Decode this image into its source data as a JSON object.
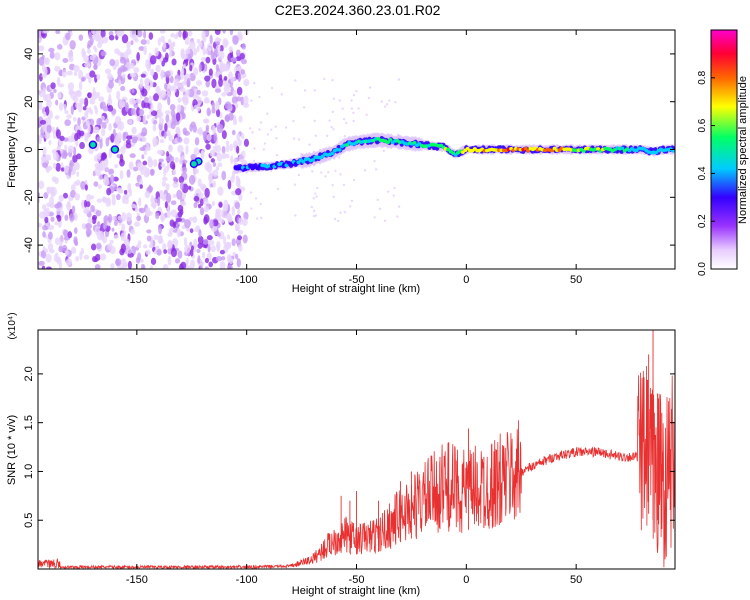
{
  "title": "C2E3.2024.360.23.01.R02",
  "chart_data": [
    {
      "type": "heatmap",
      "xlabel": "Height of straight line (km)",
      "ylabel": "Frequency (Hz)",
      "xlim": [
        -195,
        95
      ],
      "ylim": [
        -50,
        50
      ],
      "xticks": [
        -150,
        -100,
        -50,
        0,
        50
      ],
      "yticks": [
        -40,
        -20,
        0,
        20,
        40
      ],
      "colorbar": {
        "label": "Normalized spectral amplitude",
        "range": [
          0,
          1
        ],
        "ticks": [
          "0.0",
          "0.2",
          "0.4",
          "0.6",
          "0.8"
        ],
        "colormap": [
          "#ffffff",
          "#e8ccff",
          "#9933ff",
          "#3300ff",
          "#00ccff",
          "#00ff66",
          "#ffff00",
          "#ff6600",
          "#ff0033",
          "#ff00cc"
        ]
      },
      "ridge": {
        "x": [
          -105,
          -90,
          -80,
          -70,
          -60,
          -55,
          -50,
          -40,
          -30,
          -20,
          -10,
          -5,
          0,
          10,
          20,
          30,
          40,
          50,
          60,
          70,
          80,
          85,
          90,
          95
        ],
        "freq": [
          -8,
          -7,
          -6,
          -4,
          -1,
          2,
          3,
          4,
          3,
          2,
          1,
          -2,
          0,
          0,
          0,
          0,
          0,
          0,
          0,
          0,
          0,
          -1,
          0,
          0
        ],
        "amplitude": [
          0.4,
          0.45,
          0.45,
          0.5,
          0.5,
          0.55,
          0.55,
          0.6,
          0.6,
          0.6,
          0.7,
          0.6,
          0.8,
          0.85,
          0.9,
          0.85,
          0.8,
          0.75,
          0.7,
          0.6,
          0.5,
          0.5,
          0.5,
          0.5
        ]
      },
      "noise_region": {
        "x": [
          -195,
          -100
        ]
      }
    },
    {
      "type": "line",
      "xlabel": "Height of straight line (km)",
      "ylabel": "SNR (10 * v/v)",
      "scale_note": "(x10⁴)",
      "xlim": [
        -195,
        95
      ],
      "ylim": [
        0,
        2.45
      ],
      "xticks": [
        -150,
        -100,
        -50,
        0,
        50
      ],
      "yticks": [
        "0.5",
        "1.0",
        "1.5",
        "2.0"
      ],
      "color": "#e83030",
      "envelope": {
        "x": [
          -195,
          -100,
          -80,
          -70,
          -60,
          -55,
          -50,
          -40,
          -30,
          -20,
          -10,
          0,
          10,
          20,
          30,
          40,
          50,
          60,
          70,
          75,
          80,
          82,
          85,
          88,
          90,
          92,
          95
        ],
        "y": [
          0.02,
          0.02,
          0.03,
          0.1,
          0.3,
          0.35,
          0.3,
          0.35,
          0.55,
          0.7,
          0.85,
          0.8,
          0.85,
          0.95,
          1.05,
          1.15,
          1.2,
          1.2,
          1.15,
          1.15,
          1.15,
          1.2,
          1.0,
          1.0,
          0.9,
          1.0,
          1.2
        ]
      },
      "spikes": [
        {
          "x": -57,
          "y": 0.75
        },
        {
          "x": -53,
          "y": 0.7
        },
        {
          "x": -50,
          "y": 0.8
        },
        {
          "x": -40,
          "y": 0.7
        },
        {
          "x": -30,
          "y": 0.9
        },
        {
          "x": -25,
          "y": 1.0
        },
        {
          "x": -12,
          "y": 1.15
        },
        {
          "x": -8,
          "y": 1.3
        },
        {
          "x": 1,
          "y": 1.44
        },
        {
          "x": 8,
          "y": 1.15
        },
        {
          "x": 15,
          "y": 1.1
        },
        {
          "x": 83,
          "y": 2.2
        },
        {
          "x": 85,
          "y": 2.45
        },
        {
          "x": 87,
          "y": 1.8
        },
        {
          "x": 89,
          "y": 1.6
        }
      ]
    }
  ]
}
